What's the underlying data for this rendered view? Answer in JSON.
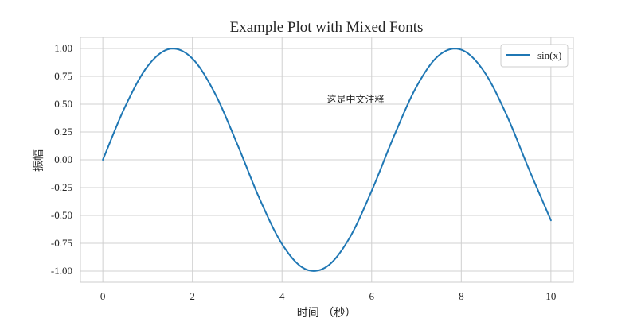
{
  "chart_data": {
    "type": "line",
    "title": "Example Plot with Mixed Fonts",
    "xlabel": "时间 （秒）",
    "ylabel": "振幅",
    "xlim": [
      -0.5,
      10.5
    ],
    "ylim": [
      -1.1,
      1.1
    ],
    "x_ticks": [
      0,
      2,
      4,
      6,
      8,
      10
    ],
    "x_tick_labels": [
      "0",
      "2",
      "4",
      "6",
      "8",
      "10"
    ],
    "y_ticks": [
      1.0,
      0.75,
      0.5,
      0.25,
      0.0,
      -0.25,
      -0.5,
      -0.75,
      -1.0
    ],
    "y_tick_labels": [
      "1.00",
      "0.75",
      "0.50",
      "0.25",
      "0.00",
      "-0.25",
      "-0.50",
      "-0.75",
      "-1.00"
    ],
    "grid": true,
    "legend_position": "top-right",
    "series": [
      {
        "name": "sin(x)",
        "color": "#1f77b4",
        "x": [
          0,
          0.5,
          1.0,
          1.5,
          2.0,
          2.5,
          3.0,
          3.5,
          4.0,
          4.5,
          5.0,
          5.5,
          6.0,
          6.5,
          7.0,
          7.5,
          8.0,
          8.5,
          9.0,
          9.5,
          10.0
        ],
        "y": [
          0,
          0.479,
          0.841,
          0.997,
          0.909,
          0.598,
          0.141,
          -0.351,
          -0.757,
          -0.978,
          -0.959,
          -0.706,
          -0.279,
          0.215,
          0.657,
          0.938,
          0.989,
          0.798,
          0.412,
          -0.075,
          -0.544
        ]
      }
    ],
    "annotations": [
      {
        "text": "这是中文注释",
        "x": 5.0,
        "y": 0.5
      }
    ]
  }
}
